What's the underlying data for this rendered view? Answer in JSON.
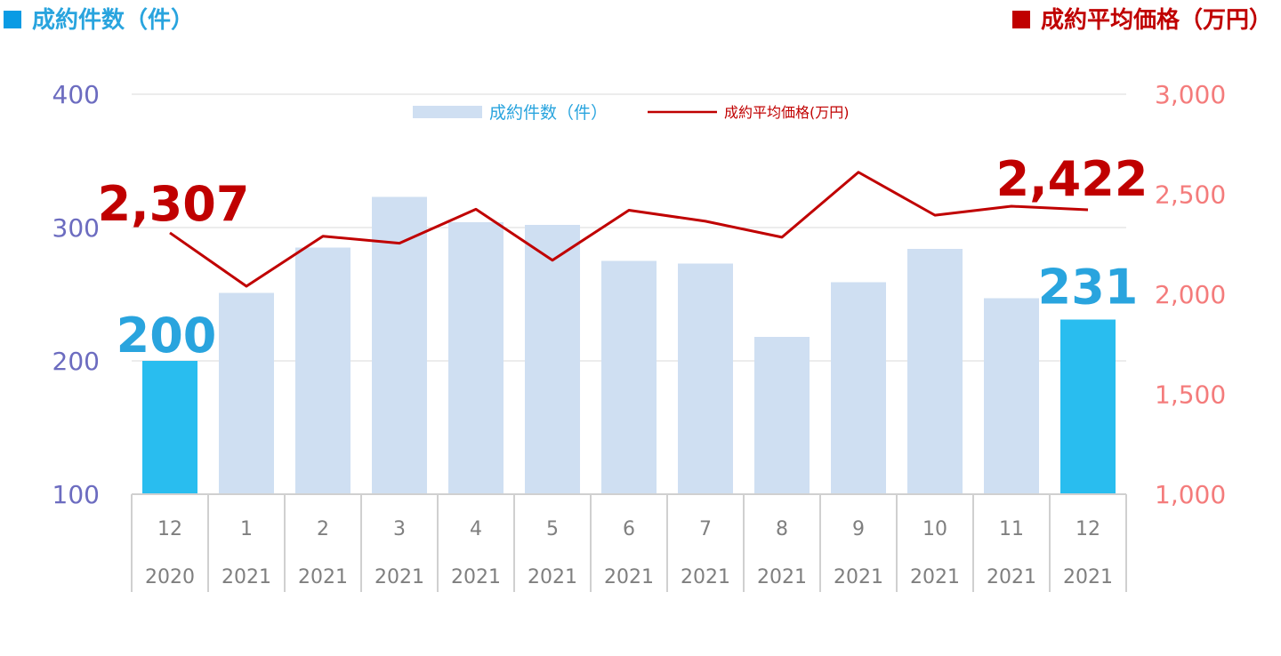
{
  "header": {
    "left_label": "成約件数（件）",
    "right_label": "成約平均価格（万円）"
  },
  "colors": {
    "count_bar": "#cfdff2",
    "count_bar_highlight": "#29bdef",
    "count_text": "#29a4de",
    "price_line": "#c00000",
    "left_axis_text": "#6c6cc0",
    "right_axis_text": "#f47c7c",
    "grid": "#d9d9d9",
    "axis_table": "#d0d0d0",
    "category_text": "#7f7f7f"
  },
  "chart_data": {
    "type": "bar",
    "categories": [
      {
        "month": "12",
        "year": "2020"
      },
      {
        "month": "1",
        "year": "2021"
      },
      {
        "month": "2",
        "year": "2021"
      },
      {
        "month": "3",
        "year": "2021"
      },
      {
        "month": "4",
        "year": "2021"
      },
      {
        "month": "5",
        "year": "2021"
      },
      {
        "month": "6",
        "year": "2021"
      },
      {
        "month": "7",
        "year": "2021"
      },
      {
        "month": "8",
        "year": "2021"
      },
      {
        "month": "9",
        "year": "2021"
      },
      {
        "month": "10",
        "year": "2021"
      },
      {
        "month": "11",
        "year": "2021"
      },
      {
        "month": "12",
        "year": "2021"
      }
    ],
    "series": [
      {
        "name": "成約件数（件）",
        "type": "bar",
        "axis": "left",
        "values": [
          200,
          251,
          285,
          323,
          304,
          302,
          275,
          273,
          218,
          259,
          284,
          247,
          231
        ],
        "highlight": [
          true,
          false,
          false,
          false,
          false,
          false,
          false,
          false,
          false,
          false,
          false,
          false,
          true
        ]
      },
      {
        "name": "成約平均価格(万円)",
        "type": "line",
        "axis": "right",
        "values": [
          2307,
          2040,
          2290,
          2255,
          2425,
          2170,
          2420,
          2365,
          2285,
          2610,
          2395,
          2440,
          2422
        ]
      }
    ],
    "y_left": {
      "min": 100,
      "max": 400,
      "ticks": [
        "100",
        "200",
        "300",
        "400"
      ]
    },
    "y_right": {
      "min": 1000,
      "max": 3000,
      "ticks": [
        "1,000",
        "1,500",
        "2,000",
        "2,500",
        "3,000"
      ]
    },
    "annotations": {
      "count_first": "200",
      "count_last": "231",
      "price_first": "2,307",
      "price_last": "2,422"
    },
    "legend": {
      "position": "top-center",
      "bar_label": "成約件数（件）",
      "line_label": "成約平均価格(万円)"
    },
    "grid": true
  }
}
